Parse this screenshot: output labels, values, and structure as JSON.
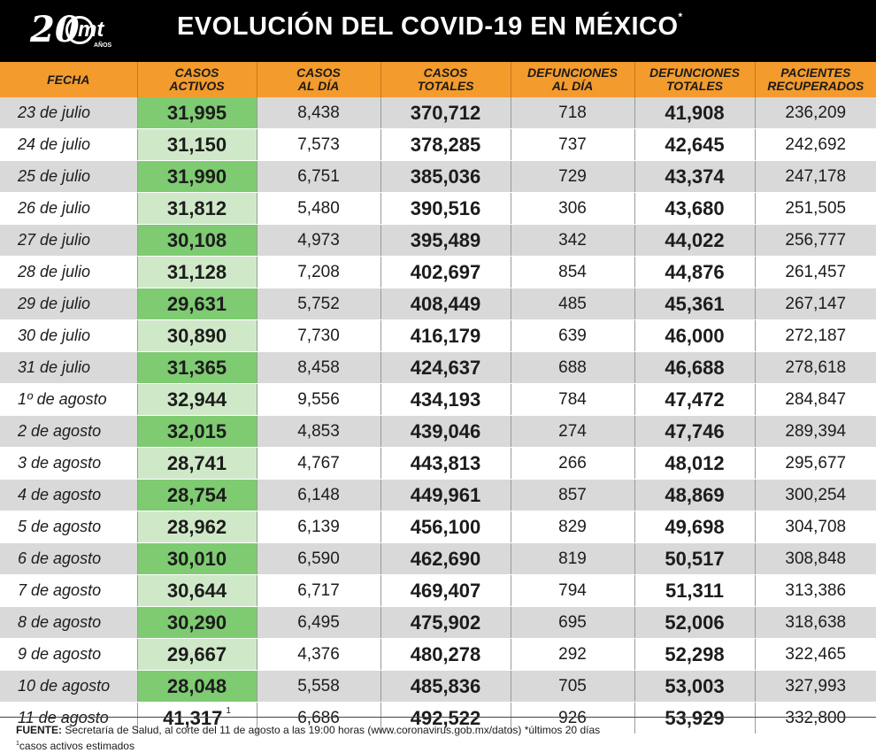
{
  "header": {
    "logo_number": "20",
    "logo_brand": "mt",
    "logo_sub": "AÑOS",
    "title": "EVOLUCIÓN DEL COVID-19 EN MÉXICO",
    "title_mark": "*"
  },
  "columns": [
    [
      "FECHA"
    ],
    [
      "CASOS",
      "ACTIVOS"
    ],
    [
      "CASOS",
      "AL DÍA"
    ],
    [
      "CASOS",
      "TOTALES"
    ],
    [
      "DEFUNCIONES",
      "AL DÍA"
    ],
    [
      "DEFUNCIONES",
      "TOTALES"
    ],
    [
      "PACIENTES",
      "RECUPERADOS"
    ]
  ],
  "rows": [
    [
      "23 de julio",
      "31,995",
      "8,438",
      "370,712",
      "718",
      "41,908",
      "236,209"
    ],
    [
      "24 de julio",
      "31,150",
      "7,573",
      "378,285",
      "737",
      "42,645",
      "242,692"
    ],
    [
      "25 de julio",
      "31,990",
      "6,751",
      "385,036",
      "729",
      "43,374",
      "247,178"
    ],
    [
      "26 de julio",
      "31,812",
      "5,480",
      "390,516",
      "306",
      "43,680",
      "251,505"
    ],
    [
      "27 de julio",
      "30,108",
      "4,973",
      "395,489",
      "342",
      "44,022",
      "256,777"
    ],
    [
      "28 de julio",
      "31,128",
      "7,208",
      "402,697",
      "854",
      "44,876",
      "261,457"
    ],
    [
      "29 de julio",
      "29,631",
      "5,752",
      "408,449",
      "485",
      "45,361",
      "267,147"
    ],
    [
      "30 de julio",
      "30,890",
      "7,730",
      "416,179",
      "639",
      "46,000",
      "272,187"
    ],
    [
      "31 de julio",
      "31,365",
      "8,458",
      "424,637",
      "688",
      "46,688",
      "278,618"
    ],
    [
      "1º de agosto",
      "32,944",
      "9,556",
      "434,193",
      "784",
      "47,472",
      "284,847"
    ],
    [
      "2 de agosto",
      "32,015",
      "4,853",
      "439,046",
      "274",
      "47,746",
      "289,394"
    ],
    [
      "3 de agosto",
      "28,741",
      "4,767",
      "443,813",
      "266",
      "48,012",
      "295,677"
    ],
    [
      "4 de agosto",
      "28,754",
      "6,148",
      "449,961",
      "857",
      "48,869",
      "300,254"
    ],
    [
      "5 de agosto",
      "28,962",
      "6,139",
      "456,100",
      "829",
      "49,698",
      "304,708"
    ],
    [
      "6 de agosto",
      "30,010",
      "6,590",
      "462,690",
      "819",
      "50,517",
      "308,848"
    ],
    [
      "7 de agosto",
      "30,644",
      "6,717",
      "469,407",
      "794",
      "51,311",
      "313,386"
    ],
    [
      "8 de agosto",
      "30,290",
      "6,495",
      "475,902",
      "695",
      "52,006",
      "318,638"
    ],
    [
      "9 de agosto",
      "29,667",
      "4,376",
      "480,278",
      "292",
      "52,298",
      "322,465"
    ],
    [
      "10 de agosto",
      "28,048",
      "5,558",
      "485,836",
      "705",
      "53,003",
      "327,993"
    ],
    [
      "11 de agosto",
      "41,317",
      "6,686",
      "492,522",
      "926",
      "53,929",
      "332,800"
    ]
  ],
  "last_row_mark": "1",
  "footer": {
    "label": "FUENTE:",
    "source": "Secretaría de Salud, al corte del 11 de agosto a las 19:00 horas (www.coronavirus.gob.mx/datos) *últimos 20 días",
    "note_mark": "1",
    "note": "casos activos estimados"
  },
  "colors": {
    "header_bg": "#000000",
    "column_header_bg": "#f39b2d",
    "active_strong": "#7ecb72",
    "active_light": "#cfe9c8",
    "row_gray": "#d9d9d9"
  },
  "chart_data": {
    "type": "table",
    "title": "EVOLUCIÓN DEL COVID-19 EN MÉXICO",
    "columns": [
      "FECHA",
      "CASOS ACTIVOS",
      "CASOS AL DÍA",
      "CASOS TOTALES",
      "DEFUNCIONES AL DÍA",
      "DEFUNCIONES TOTALES",
      "PACIENTES RECUPERADOS"
    ],
    "categories": [
      "23 de julio",
      "24 de julio",
      "25 de julio",
      "26 de julio",
      "27 de julio",
      "28 de julio",
      "29 de julio",
      "30 de julio",
      "31 de julio",
      "1º de agosto",
      "2 de agosto",
      "3 de agosto",
      "4 de agosto",
      "5 de agosto",
      "6 de agosto",
      "7 de agosto",
      "8 de agosto",
      "9 de agosto",
      "10 de agosto",
      "11 de agosto"
    ],
    "series": [
      {
        "name": "CASOS ACTIVOS",
        "values": [
          31995,
          31150,
          31990,
          31812,
          30108,
          31128,
          29631,
          30890,
          31365,
          32944,
          32015,
          28741,
          28754,
          28962,
          30010,
          30644,
          30290,
          29667,
          28048,
          41317
        ]
      },
      {
        "name": "CASOS AL DÍA",
        "values": [
          8438,
          7573,
          6751,
          5480,
          4973,
          7208,
          5752,
          7730,
          8458,
          9556,
          4853,
          4767,
          6148,
          6139,
          6590,
          6717,
          6495,
          4376,
          5558,
          6686
        ]
      },
      {
        "name": "CASOS TOTALES",
        "values": [
          370712,
          378285,
          385036,
          390516,
          395489,
          402697,
          408449,
          416179,
          424637,
          434193,
          439046,
          443813,
          449961,
          456100,
          462690,
          469407,
          475902,
          480278,
          485836,
          492522
        ]
      },
      {
        "name": "DEFUNCIONES AL DÍA",
        "values": [
          718,
          737,
          729,
          306,
          342,
          854,
          485,
          639,
          688,
          784,
          274,
          266,
          857,
          829,
          819,
          794,
          695,
          292,
          705,
          926
        ]
      },
      {
        "name": "DEFUNCIONES TOTALES",
        "values": [
          41908,
          42645,
          43374,
          43680,
          44022,
          44876,
          45361,
          46000,
          46688,
          47472,
          47746,
          48012,
          48869,
          49698,
          50517,
          51311,
          52006,
          52298,
          53003,
          53929
        ]
      },
      {
        "name": "PACIENTES RECUPERADOS",
        "values": [
          236209,
          242692,
          247178,
          251505,
          256777,
          261457,
          267147,
          272187,
          278618,
          284847,
          289394,
          295677,
          300254,
          304708,
          308848,
          313386,
          318638,
          322465,
          327993,
          332800
        ]
      }
    ]
  }
}
